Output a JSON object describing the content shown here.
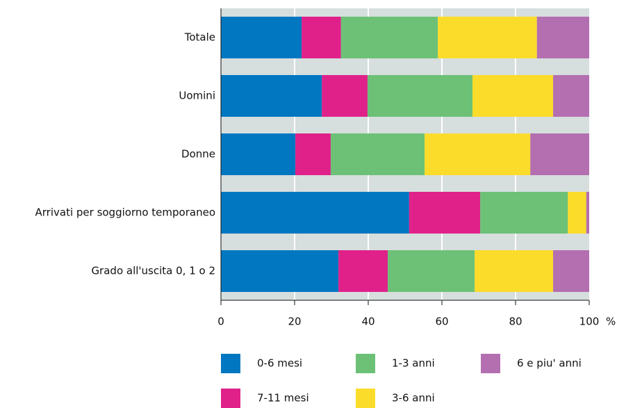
{
  "chart_data": {
    "type": "stacked-bar-horizontal",
    "categories": [
      "Totale",
      "Uomini",
      "Donne",
      "Arrivati per soggiorno temporaneo",
      "Grado all'uscita 0, 1 o 2"
    ],
    "series": [
      {
        "name": "0-6 mesi",
        "color": "#0077c0",
        "values": [
          21.9,
          27.4,
          20.2,
          51.1,
          31.9
        ]
      },
      {
        "name": "7-11 mesi",
        "color": "#e0218a",
        "values": [
          10.7,
          12.4,
          9.6,
          19.3,
          13.4
        ]
      },
      {
        "name": "1-3 anni",
        "color": "#6cc177",
        "values": [
          26.3,
          28.5,
          25.5,
          23.8,
          23.6
        ]
      },
      {
        "name": "3-6 anni",
        "color": "#fcdc2a",
        "values": [
          26.9,
          21.9,
          28.7,
          5.0,
          21.3
        ]
      },
      {
        "name": "6 e piu' anni",
        "color": "#b36fb0",
        "values": [
          14.2,
          9.8,
          16.0,
          0.8,
          9.8
        ]
      }
    ],
    "x_label": "%",
    "xlim": [
      0,
      100
    ],
    "xticks": [
      0,
      20,
      40,
      60,
      80,
      100
    ],
    "grid": true
  }
}
